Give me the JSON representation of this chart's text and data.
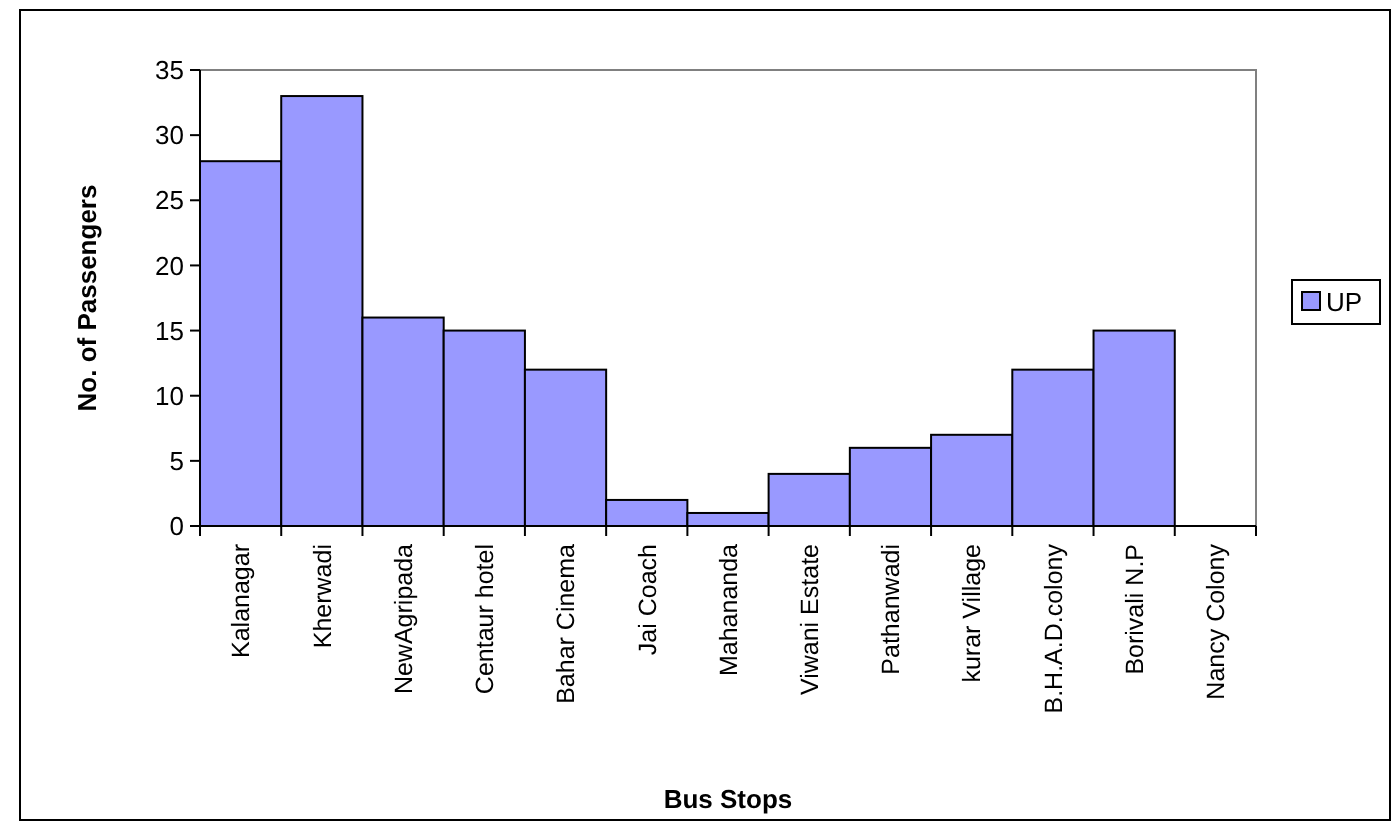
{
  "chart_data": {
    "type": "bar",
    "xlabel": "Bus Stops",
    "ylabel": "No. of Passengers",
    "categories": [
      "Kalanagar",
      "Kherwadi",
      "NewAgripada",
      "Centaur hotel",
      "Bahar Cinema",
      "Jai Coach",
      "Mahananda",
      "Viwani Estate",
      "Pathanwadi",
      "kurar Village",
      "B.H.A.D.colony",
      "Borivali N.P",
      "Nancy Colony"
    ],
    "series": [
      {
        "name": "UP",
        "color": "#9999ff",
        "values": [
          28,
          33,
          16,
          15,
          12,
          2,
          1,
          4,
          6,
          7,
          12,
          15,
          0
        ]
      }
    ],
    "ylim": [
      0,
      35
    ],
    "yticks": [
      0,
      5,
      10,
      15,
      20,
      25,
      30,
      35
    ],
    "grid": false,
    "legend": "right"
  }
}
